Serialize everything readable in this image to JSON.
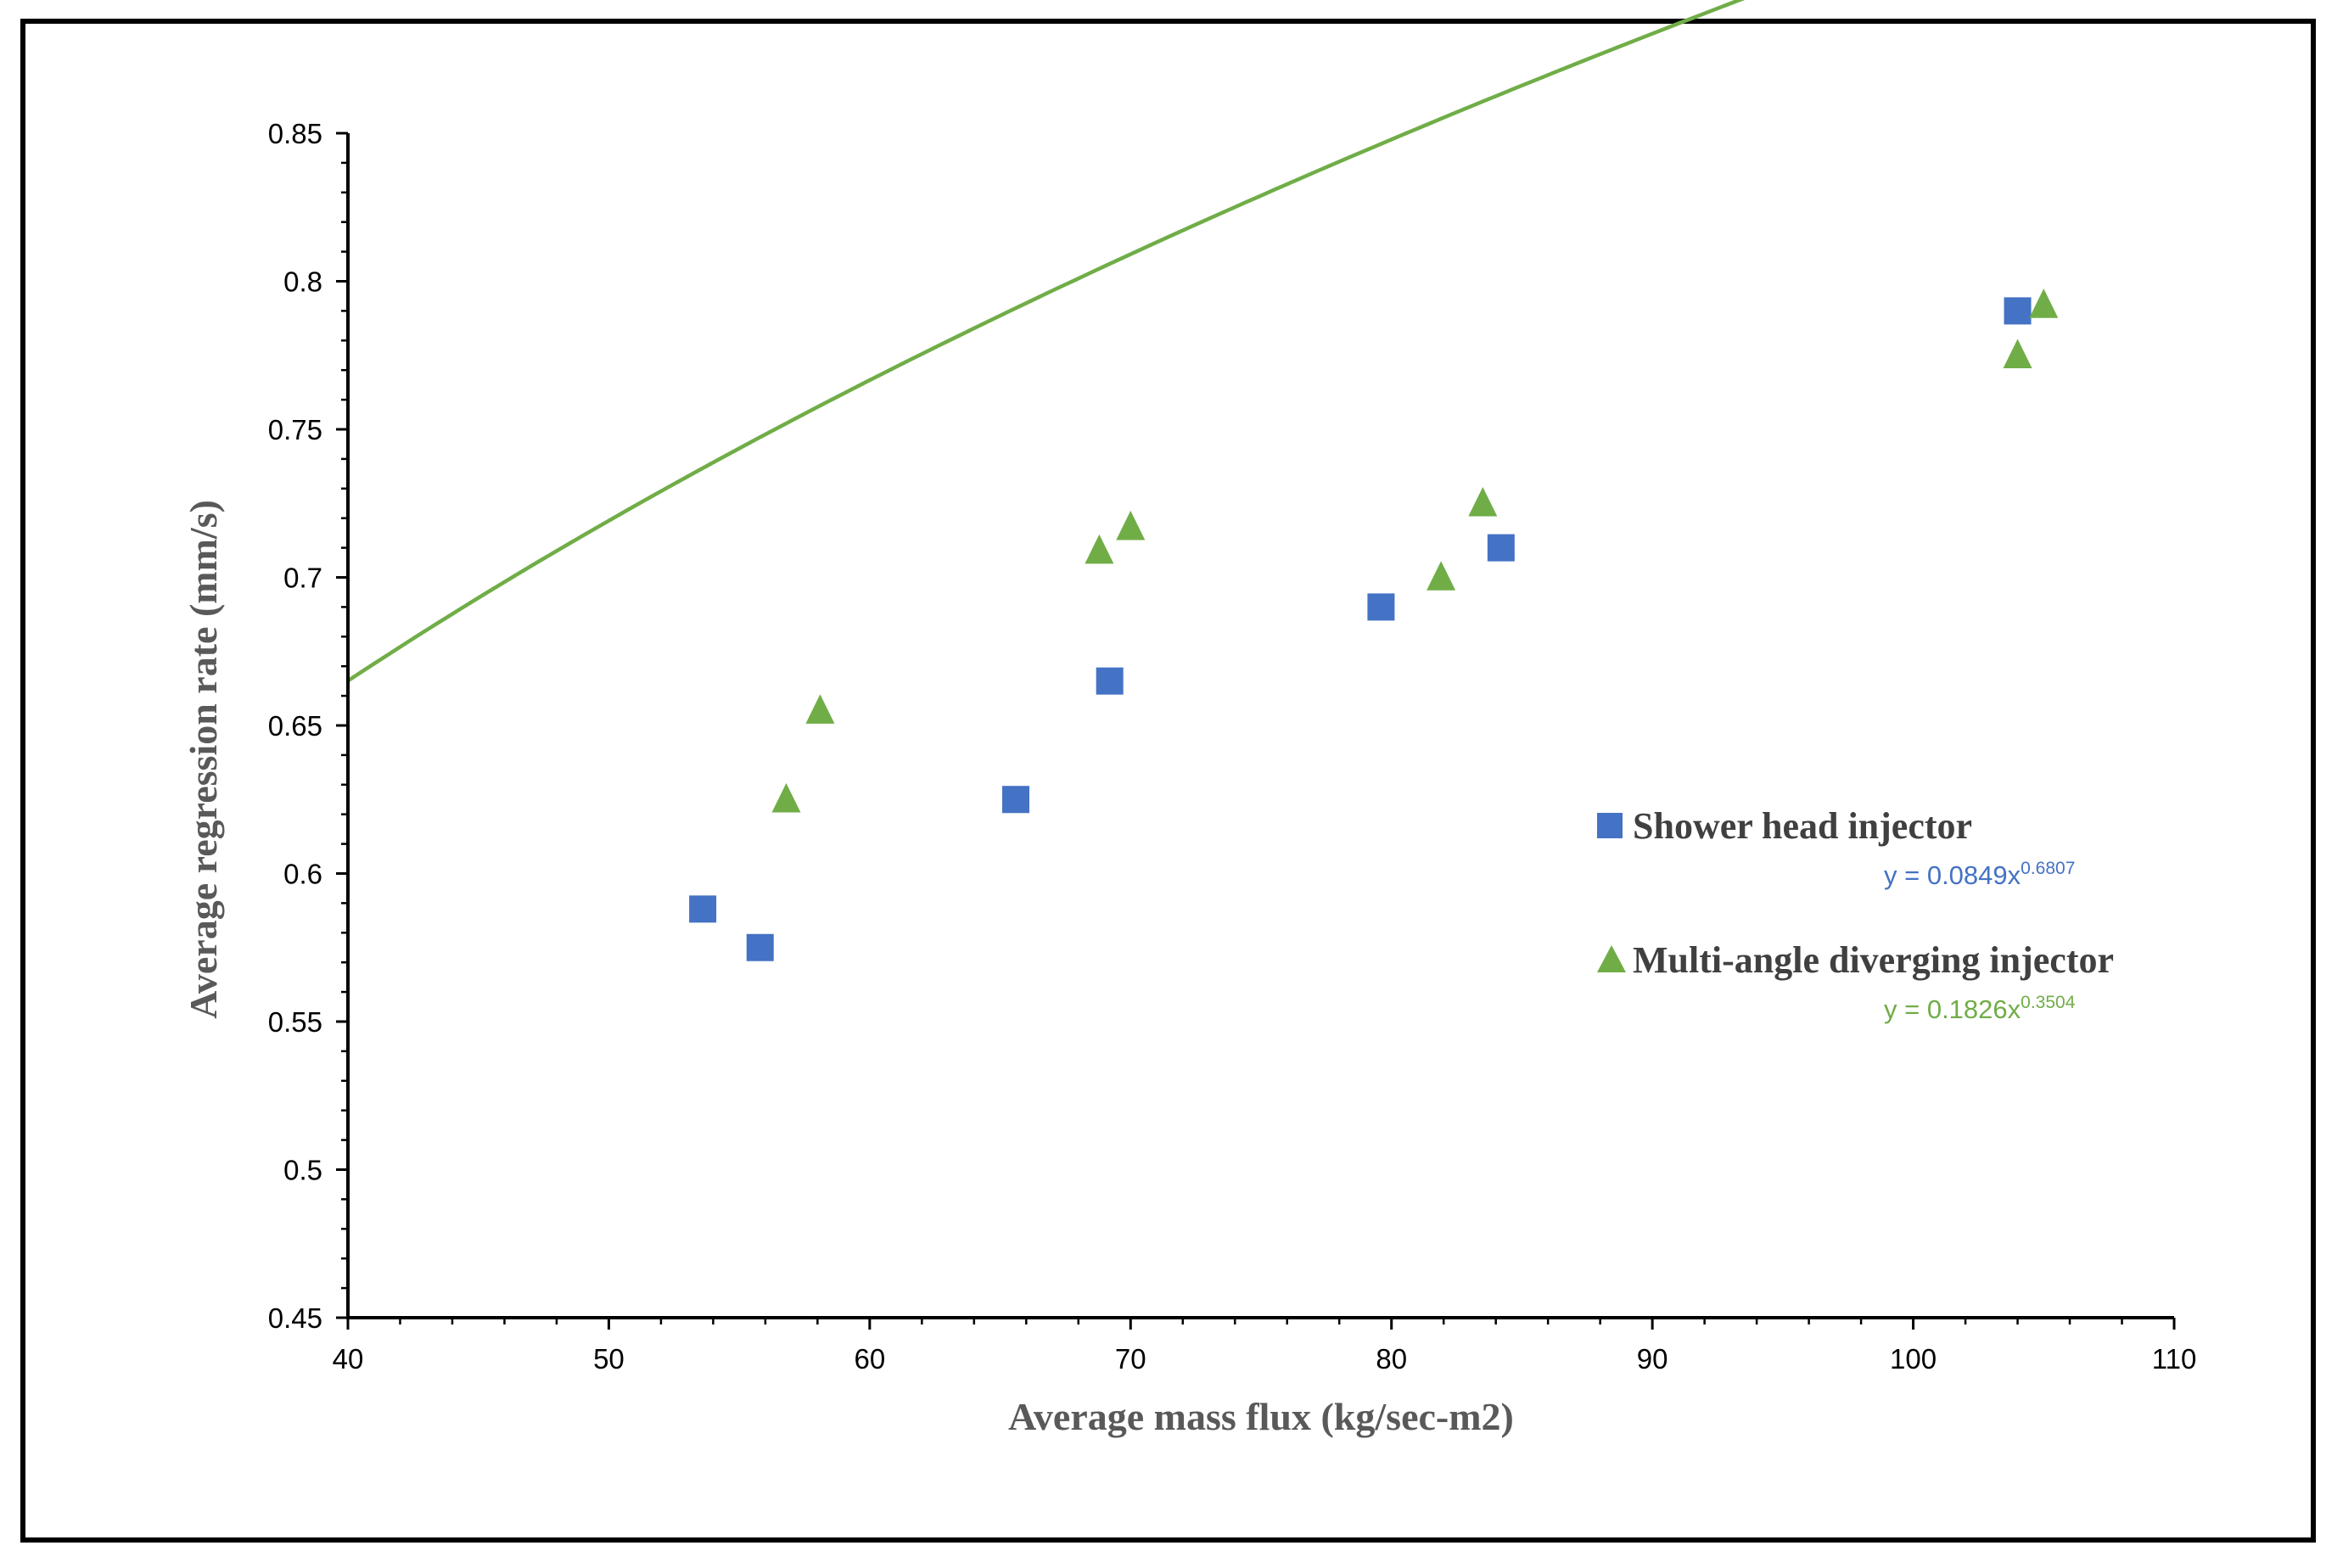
{
  "chart_data": {
    "type": "scatter",
    "title": "",
    "xlabel": "Average mass flux (kg/sec-m2)",
    "ylabel": "Average regression rate (mm/s)",
    "xlim": [
      40,
      110
    ],
    "ylim": [
      0.45,
      0.85
    ],
    "x_ticks": [
      40,
      50,
      60,
      70,
      80,
      90,
      100,
      110
    ],
    "x_tick_labels": [
      "40",
      "50",
      "60",
      "70",
      "80",
      "90",
      "100",
      "110"
    ],
    "y_ticks": [
      0.45,
      0.5,
      0.55,
      0.6,
      0.65,
      0.7,
      0.75,
      0.8,
      0.85
    ],
    "y_tick_labels": [
      "0.45",
      "0.5",
      "0.55",
      "0.6",
      "0.65",
      "0.7",
      "0.75",
      "0.8",
      "0.85"
    ],
    "grid": false,
    "legend_position": "right",
    "series": [
      {
        "name": "Shower head injector",
        "marker": "square",
        "color": "#4472C4",
        "points": [
          {
            "x": 53.6,
            "y": 0.588
          },
          {
            "x": 55.8,
            "y": 0.575
          },
          {
            "x": 65.6,
            "y": 0.625
          },
          {
            "x": 69.2,
            "y": 0.665
          },
          {
            "x": 79.6,
            "y": 0.69
          },
          {
            "x": 84.2,
            "y": 0.71
          },
          {
            "x": 104.0,
            "y": 0.79
          }
        ],
        "trendline": {
          "type": "power",
          "coefficient": 0.0849,
          "exponent": 0.6807,
          "x_range": [
            40,
            104.5
          ],
          "equation_base": "y = 0.0849x",
          "equation_exponent": "0.6807"
        }
      },
      {
        "name": "Multi-angle diverging injector",
        "marker": "triangle",
        "color": "#70AD47",
        "points": [
          {
            "x": 56.8,
            "y": 0.625
          },
          {
            "x": 58.1,
            "y": 0.655
          },
          {
            "x": 68.8,
            "y": 0.709
          },
          {
            "x": 70.0,
            "y": 0.717
          },
          {
            "x": 81.9,
            "y": 0.7
          },
          {
            "x": 83.5,
            "y": 0.725
          },
          {
            "x": 104.0,
            "y": 0.775
          },
          {
            "x": 105.0,
            "y": 0.792
          }
        ],
        "trendline": {
          "type": "power",
          "coefficient": 0.1826,
          "exponent": 0.3504,
          "x_range": [
            40,
            104.5
          ],
          "equation_base": "y = 0.1826x",
          "equation_exponent": "0.3504"
        }
      }
    ]
  }
}
